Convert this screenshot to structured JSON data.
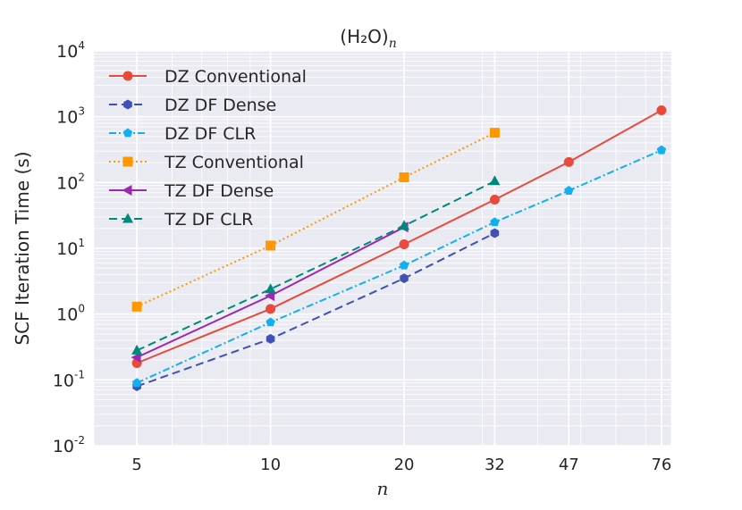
{
  "chart_data": {
    "type": "line",
    "title": "(H₂O)",
    "title_sub": "n",
    "xlabel": "n",
    "ylabel": "SCF Iteration Time (s)",
    "x_scale": "log",
    "y_scale": "log",
    "xticks": [
      5,
      10,
      20,
      32,
      47,
      76
    ],
    "yticks": [
      {
        "base": "10",
        "exp": "-2"
      },
      {
        "base": "10",
        "exp": "-1"
      },
      {
        "base": "10",
        "exp": "0"
      },
      {
        "base": "10",
        "exp": "1"
      },
      {
        "base": "10",
        "exp": "2"
      },
      {
        "base": "10",
        "exp": "3"
      },
      {
        "base": "10",
        "exp": "4"
      }
    ],
    "xlim": [
      4,
      80
    ],
    "ylim": [
      0.01,
      10000
    ],
    "grid": true,
    "legend_position": "upper-left",
    "series": [
      {
        "name": "DZ Conventional",
        "color": "#e84a3c",
        "dash": "solid",
        "marker": "circle",
        "x": [
          5,
          10,
          20,
          32,
          47,
          76
        ],
        "y": [
          0.18,
          1.2,
          11.5,
          55,
          205,
          1250
        ]
      },
      {
        "name": "DZ DF Dense",
        "color": "#3f51b5",
        "dash": "dashed",
        "marker": "hexagon",
        "x": [
          5,
          10,
          20,
          32
        ],
        "y": [
          0.08,
          0.42,
          3.5,
          17
        ]
      },
      {
        "name": "DZ DF CLR",
        "color": "#13b0f0",
        "dash": "dashdot",
        "marker": "pentagon",
        "x": [
          5,
          10,
          20,
          32,
          47,
          76
        ],
        "y": [
          0.09,
          0.75,
          5.5,
          25,
          75,
          310
        ]
      },
      {
        "name": "TZ Conventional",
        "color": "#ff9800",
        "dash": "dotted",
        "marker": "square",
        "x": [
          5,
          10,
          20,
          32
        ],
        "y": [
          1.3,
          11,
          120,
          570
        ]
      },
      {
        "name": "TZ DF Dense",
        "color": "#9c27b0",
        "dash": "solid",
        "marker": "triangle-left",
        "x": [
          5,
          10,
          20
        ],
        "y": [
          0.22,
          1.9,
          21
        ]
      },
      {
        "name": "TZ DF CLR",
        "color": "#00897b",
        "dash": "dashed",
        "marker": "triangle-up",
        "x": [
          5,
          10,
          20,
          32
        ],
        "y": [
          0.28,
          2.4,
          22,
          105
        ]
      }
    ]
  }
}
